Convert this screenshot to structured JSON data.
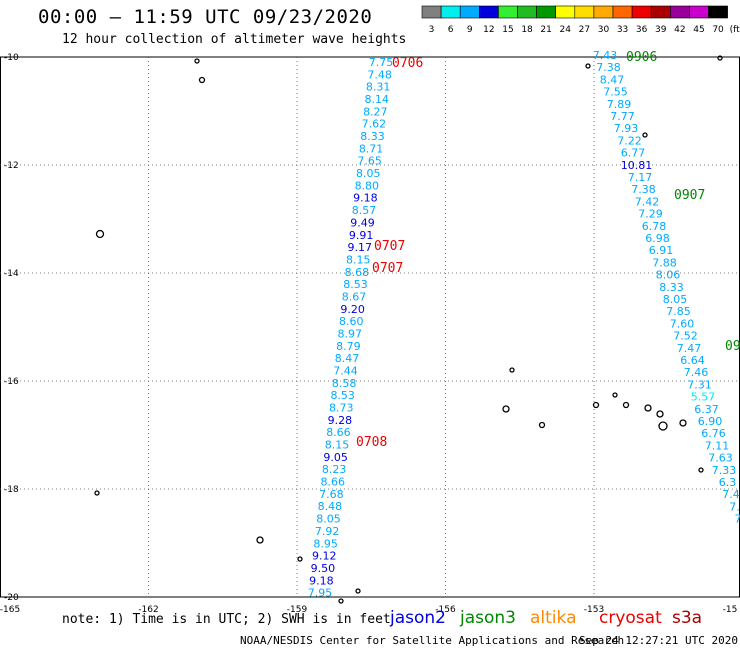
{
  "header": {
    "title": "00:00 – 11:59 UTC 09/23/2020",
    "subtitle": "12 hour collection of altimeter wave heights"
  },
  "colorbar": {
    "labels": [
      "3",
      "6",
      "9",
      "12",
      "15",
      "18",
      "21",
      "24",
      "27",
      "30",
      "33",
      "36",
      "39",
      "42",
      "45",
      "70"
    ],
    "unit": "(ft)",
    "colors": [
      "#808080",
      "#00eeee",
      "#00aaff",
      "#0000dd",
      "#33ee33",
      "#22bb22",
      "#009900",
      "#ffff00",
      "#ffdd00",
      "#ffaa00",
      "#ff6600",
      "#ee0000",
      "#aa0000",
      "#990099",
      "#cc00cc",
      "#000000"
    ]
  },
  "axes": {
    "x_labels": [
      "-165",
      "-162",
      "-159",
      "-156",
      "-153",
      "-15"
    ],
    "y_labels": [
      "-10",
      "-12",
      "-14",
      "-16",
      "-18",
      "-20"
    ]
  },
  "track_west": {
    "values": [
      "7.75",
      "7.48",
      "8.31",
      "8.14",
      "8.27",
      "7.62",
      "8.33",
      "8.71",
      "7.65",
      "8.05",
      "8.80",
      "9.18",
      "8.57",
      "9.49",
      "9.91",
      "9.17",
      "8.15",
      "8.68",
      "8.53",
      "8.67",
      "9.20",
      "8.60",
      "8.97",
      "8.79",
      "8.47",
      "7.44",
      "8.58",
      "8.53",
      "8.73",
      "9.28",
      "8.66",
      "8.15",
      "9.05",
      "8.23",
      "8.66",
      "7.68",
      "8.48",
      "8.05",
      "7.92",
      "8.95",
      "9.12",
      "9.50",
      "9.18",
      "7.95"
    ],
    "colors": [
      "#00aaff",
      "#00aaff",
      "#00aaff",
      "#00aaff",
      "#00aaff",
      "#00aaff",
      "#00aaff",
      "#00aaff",
      "#00aaff",
      "#00aaff",
      "#00aaff",
      "#0000dd",
      "#00aaff",
      "#0000dd",
      "#0000dd",
      "#0000dd",
      "#00aaff",
      "#00aaff",
      "#00aaff",
      "#00aaff",
      "#0000dd",
      "#00aaff",
      "#00aaff",
      "#00aaff",
      "#00aaff",
      "#00aaff",
      "#00aaff",
      "#00aaff",
      "#00aaff",
      "#0000dd",
      "#00aaff",
      "#00aaff",
      "#0000dd",
      "#00aaff",
      "#00aaff",
      "#00aaff",
      "#00aaff",
      "#00aaff",
      "#00aaff",
      "#00aaff",
      "#0000dd",
      "#0000dd",
      "#0000dd",
      "#00aaff"
    ]
  },
  "track_east": {
    "values": [
      "7.43",
      "7.38",
      "8.47",
      "7.55",
      "7.89",
      "7.77",
      "7.93",
      "7.22",
      "6.77",
      "10.81",
      "7.17",
      "7.38",
      "7.42",
      "7.29",
      "6.78",
      "6.98",
      "6.91",
      "7.88",
      "8.06",
      "8.33",
      "8.05",
      "7.85",
      "7.60",
      "7.52",
      "7.47",
      "6.64",
      "7.46",
      "7.31",
      "5.57",
      "6.37",
      "6.90",
      "6.76",
      "7.11",
      "7.63",
      "7.33",
      "6.3",
      "7.4",
      "7.",
      "7"
    ],
    "colors": [
      "#00aaff",
      "#00aaff",
      "#00aaff",
      "#00aaff",
      "#00aaff",
      "#00aaff",
      "#00aaff",
      "#00aaff",
      "#00aaff",
      "#0000dd",
      "#00aaff",
      "#00aaff",
      "#00aaff",
      "#00aaff",
      "#00aaff",
      "#00aaff",
      "#00aaff",
      "#00aaff",
      "#00aaff",
      "#00aaff",
      "#00aaff",
      "#00aaff",
      "#00aaff",
      "#00aaff",
      "#00aaff",
      "#00aaff",
      "#00aaff",
      "#00aaff",
      "#00eeee",
      "#00aaff",
      "#00aaff",
      "#00aaff",
      "#00aaff",
      "#00aaff",
      "#00aaff",
      "#00aaff",
      "#00aaff",
      "#00aaff",
      "#00aaff"
    ]
  },
  "time_labels": [
    {
      "text": "0706",
      "color": "#ee0000"
    },
    {
      "text": "0707",
      "color": "#ee0000"
    },
    {
      "text": "0707",
      "color": "#ee0000"
    },
    {
      "text": "0708",
      "color": "#ee0000"
    },
    {
      "text": "0906",
      "color": "#008800"
    },
    {
      "text": "0907",
      "color": "#008800"
    },
    {
      "text": "09",
      "color": "#008800"
    }
  ],
  "footer": {
    "note": "note: 1) Time is in UTC; 2) SWH is in feet",
    "satellites": [
      "jason2",
      "jason3",
      "altika",
      "cryosat",
      "s3a"
    ],
    "credit": "NOAA/NESDIS Center for Satellite Applications and Research",
    "timestamp": "Sep 24 12:27:21 UTC 2020"
  }
}
